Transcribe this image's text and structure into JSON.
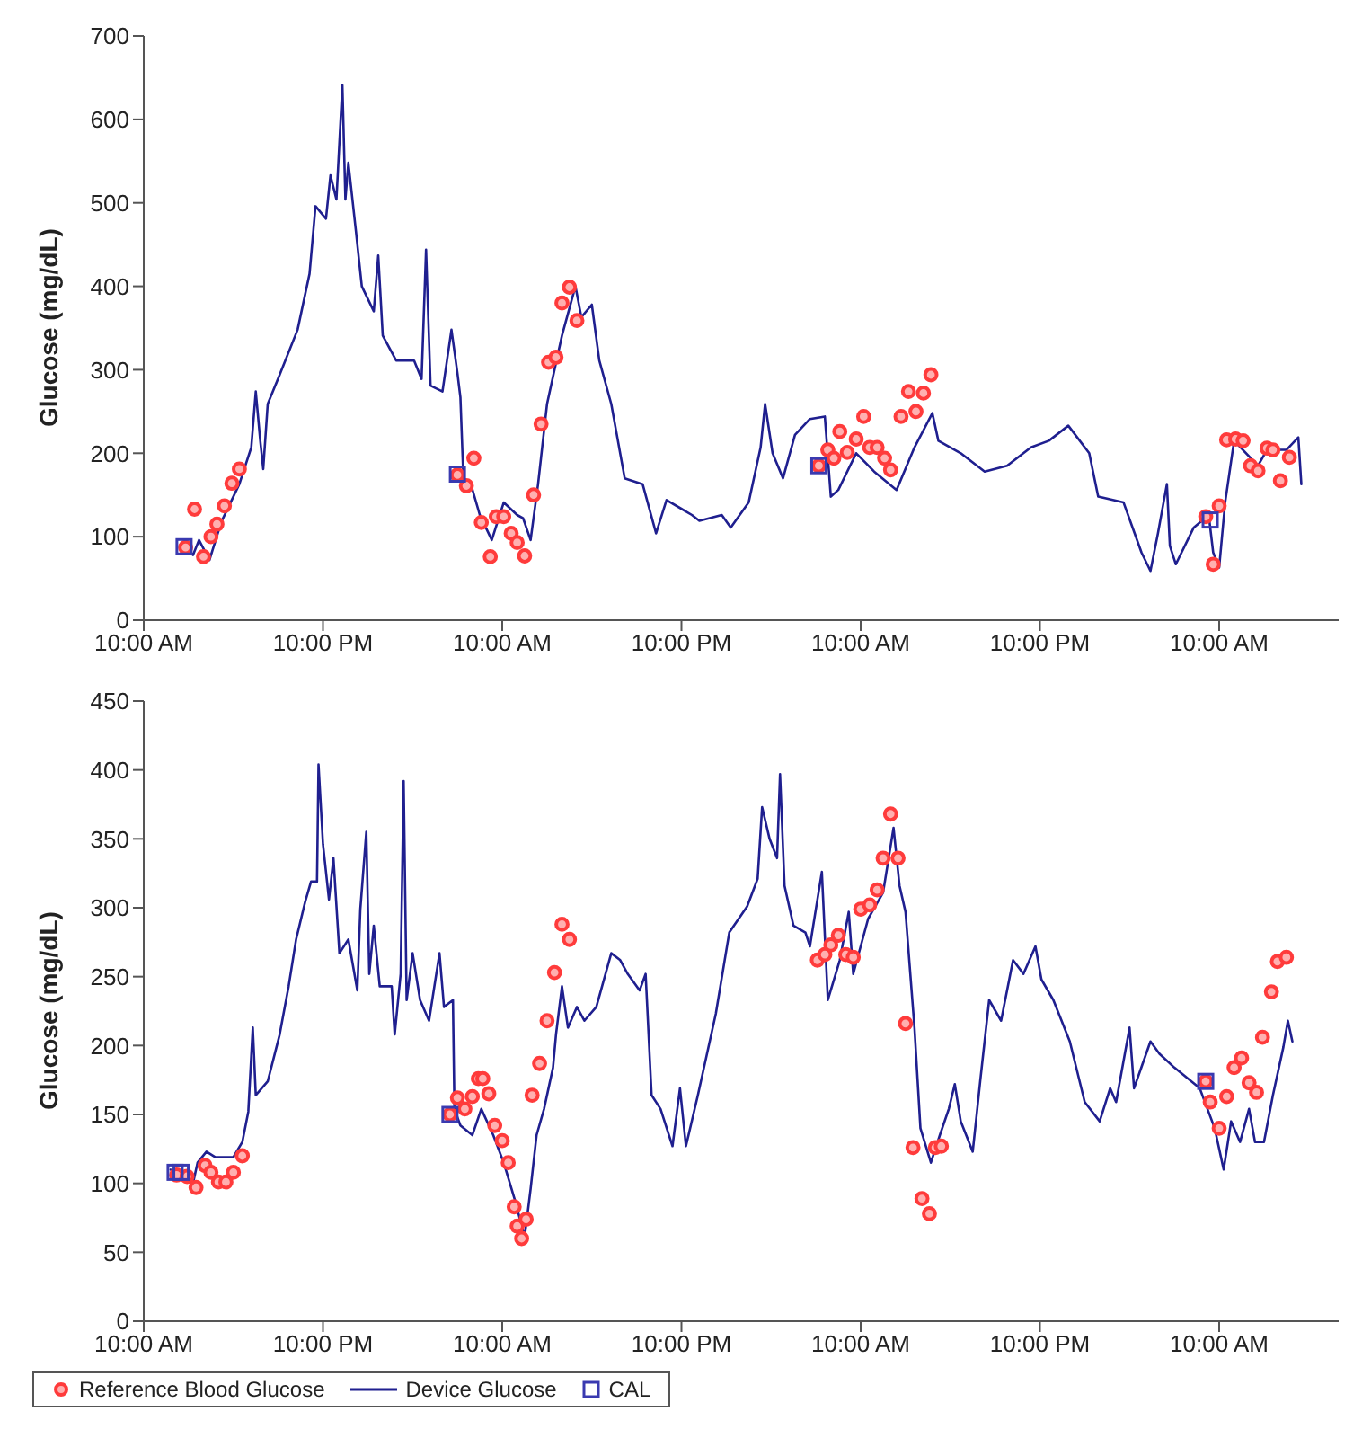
{
  "chart_data": [
    {
      "type": "line",
      "ylabel": "Glucose (mg/dL)",
      "xlim": [
        "--01-01T10:00",
        "--01-04T18:00"
      ],
      "ylim": [
        0,
        700
      ],
      "yticks": [
        0,
        100,
        200,
        300,
        400,
        500,
        600,
        700
      ],
      "xticks": [
        {
          "value": "--01-01T10:00",
          "label": "10:00 AM"
        },
        {
          "value": "--01-01T22:00",
          "label": "10:00 PM"
        },
        {
          "value": "--01-02T10:00",
          "label": "10:00 AM"
        },
        {
          "value": "--01-02T22:00",
          "label": "10:00 PM"
        },
        {
          "value": "--01-03T10:00",
          "label": "10:00 AM"
        },
        {
          "value": "--01-03T22:00",
          "label": "10:00 PM"
        },
        {
          "value": "--01-04T10:00",
          "label": "10:00 AM"
        }
      ],
      "grid": false,
      "legend": false,
      "series": [
        {
          "type": "scatter",
          "marker": "circle",
          "color": "#ff3b3b",
          "x": [
            "--01-01T12:48",
            "--01-01T13:24",
            "--01-01T14:00",
            "--01-01T14:30",
            "--01-01T14:54",
            "--01-01T15:24",
            "--01-01T15:54",
            "--01-01T16:24",
            "--01-02T07:00",
            "--01-02T08:06",
            "--01-02T07:36",
            "--01-02T08:36",
            "--01-02T09:12",
            "--01-02T09:36",
            "--01-02T10:06",
            "--01-02T10:36",
            "--01-02T11:00",
            "--01-02T11:30",
            "--01-02T12:06",
            "--01-02T12:36",
            "--01-02T13:06",
            "--01-02T13:36",
            "--01-02T14:00",
            "--01-02T14:30",
            "--01-02T15:00",
            "--01-03T07:12",
            "--01-03T07:48",
            "--01-03T08:12",
            "--01-03T08:36",
            "--01-03T09:06",
            "--01-03T09:42",
            "--01-03T10:12",
            "--01-03T10:36",
            "--01-03T11:06",
            "--01-03T11:36",
            "--01-03T12:00",
            "--01-03T12:42",
            "--01-03T13:12",
            "--01-03T13:42",
            "--01-03T14:12",
            "--01-03T14:42",
            "--01-04T09:06",
            "--01-04T09:36",
            "--01-04T10:00",
            "--01-04T10:30",
            "--01-04T11:06",
            "--01-04T11:36",
            "--01-04T12:06",
            "--01-04T12:36",
            "--01-04T13:12",
            "--01-04T13:36",
            "--01-04T14:06",
            "--01-04T14:42"
          ],
          "values": [
            87,
            133,
            76,
            100,
            115,
            137,
            164,
            181,
            174,
            194,
            161,
            117,
            76,
            124,
            124,
            104,
            93,
            77,
            150,
            235,
            309,
            315,
            380,
            399,
            359,
            185,
            204,
            194,
            226,
            201,
            217,
            244,
            207,
            207,
            194,
            180,
            244,
            274,
            250,
            272,
            294,
            124,
            67,
            137,
            216,
            217,
            215,
            185,
            179,
            206,
            204,
            167,
            195
          ]
        },
        {
          "marker": "none",
          "color": "#1f1f8f",
          "x": [
            "--01-01T12:42",
            "--01-01T13:18",
            "--01-01T13:42",
            "--01-01T14:24",
            "--01-01T15:12",
            "--01-01T16:24",
            "--01-01T17:12",
            "--01-01T17:30",
            "--01-01T17:48",
            "--01-01T18:00",
            "--01-01T18:18",
            "--01-01T19:06",
            "--01-01T20:18",
            "--01-01T21:06",
            "--01-01T21:30",
            "--01-01T22:12",
            "--01-01T22:30",
            "--01-01T22:54",
            "--01-01T23:18",
            "--01-01T23:30",
            "--01-01T23:42",
            "--01-02T00:12",
            "--01-02T00:36",
            "--01-02T01:24",
            "--01-02T01:42",
            "--01-02T02:00",
            "--01-02T02:54",
            "--01-02T04:06",
            "--01-02T04:36",
            "--01-02T04:54",
            "--01-02T05:12",
            "--01-02T06:00",
            "--01-02T06:36",
            "--01-02T07:00",
            "--01-02T07:12",
            "--01-02T07:24",
            "--01-02T07:54",
            "--01-02T08:30",
            "--01-02T09:18",
            "--01-02T10:06",
            "--01-02T11:00",
            "--01-02T11:24",
            "--01-02T11:54",
            "--01-02T12:24",
            "--01-02T13:00",
            "--01-02T14:00",
            "--01-02T14:54",
            "--01-02T15:18",
            "--01-02T16:00",
            "--01-02T16:30",
            "--01-02T17:18",
            "--01-02T18:12",
            "--01-02T19:24",
            "--01-02T20:18",
            "--01-02T21:00",
            "--01-02T22:42",
            "--01-02T23:12",
            "--01-03T00:42",
            "--01-03T01:18",
            "--01-03T02:30",
            "--01-03T03:18",
            "--01-03T03:36",
            "--01-03T04:06",
            "--01-03T04:48",
            "--01-03T05:36",
            "--01-03T06:36",
            "--01-03T07:36",
            "--01-03T08:00",
            "--01-03T08:30",
            "--01-03T09:42",
            "--01-03T10:54",
            "--01-03T12:24",
            "--01-03T13:36",
            "--01-03T14:48",
            "--01-03T15:12",
            "--01-03T16:42",
            "--01-03T18:18",
            "--01-03T19:48",
            "--01-03T21:24",
            "--01-03T22:36",
            "--01-03T23:54",
            "--01-04T01:18",
            "--01-04T01:54",
            "--01-04T03:36",
            "--01-04T04:48",
            "--01-04T05:24",
            "--01-04T05:54",
            "--01-04T06:30",
            "--01-04T06:42",
            "--01-04T07:06",
            "--01-04T08:18",
            "--01-04T09:18",
            "--01-04T09:36",
            "--01-04T10:00",
            "--01-04T10:24",
            "--01-04T11:00",
            "--01-04T12:36",
            "--01-04T13:12",
            "--01-04T14:30",
            "--01-04T15:18",
            "--01-04T15:30"
          ],
          "values": [
            89,
            78,
            96,
            72,
            118,
            163,
            207,
            274,
            215,
            181,
            259,
            294,
            348,
            415,
            496,
            481,
            533,
            504,
            641,
            504,
            548,
            467,
            400,
            370,
            437,
            341,
            311,
            311,
            289,
            444,
            281,
            274,
            348,
            296,
            267,
            170,
            163,
            126,
            96,
            141,
            126,
            122,
            96,
            163,
            259,
            341,
            400,
            363,
            378,
            311,
            259,
            170,
            163,
            104,
            144,
            126,
            119,
            126,
            111,
            141,
            207,
            259,
            200,
            170,
            222,
            241,
            244,
            148,
            156,
            200,
            178,
            156,
            207,
            248,
            215,
            200,
            178,
            185,
            207,
            215,
            233,
            200,
            148,
            141,
            81,
            59,
            104,
            163,
            89,
            67,
            111,
            126,
            81,
            63,
            141,
            215,
            185,
            204,
            204,
            219,
            163
          ]
        },
        {
          "type": "scatter",
          "marker": "square",
          "color": "#3a3ab0",
          "x": [
            "--01-01T12:42",
            "--01-02T07:00",
            "--01-03T07:12",
            "--01-04T09:24"
          ],
          "values": [
            88,
            175,
            185,
            120
          ]
        }
      ]
    },
    {
      "type": "line",
      "ylabel": "Glucose (mg/dL)",
      "xlim": [
        "--01-01T10:00",
        "--01-04T18:00"
      ],
      "ylim": [
        0,
        450
      ],
      "yticks": [
        0,
        50,
        100,
        150,
        200,
        250,
        300,
        350,
        400,
        450
      ],
      "xticks": [
        {
          "value": "--01-01T10:00",
          "label": "10:00 AM"
        },
        {
          "value": "--01-01T22:00",
          "label": "10:00 PM"
        },
        {
          "value": "--01-02T10:00",
          "label": "10:00 AM"
        },
        {
          "value": "--01-02T22:00",
          "label": "10:00 PM"
        },
        {
          "value": "--01-03T10:00",
          "label": "10:00 AM"
        },
        {
          "value": "--01-03T22:00",
          "label": "10:00 PM"
        },
        {
          "value": "--01-04T10:00",
          "label": "10:00 AM"
        }
      ],
      "grid": false,
      "legend": "bottom",
      "series": [
        {
          "name": "Reference Blood Glucose",
          "type": "scatter",
          "marker": "circle",
          "color": "#ff3b3b",
          "x": [
            "--01-01T12:12",
            "--01-01T12:54",
            "--01-01T13:30",
            "--01-01T14:06",
            "--01-01T14:30",
            "--01-01T15:00",
            "--01-01T15:30",
            "--01-01T16:00",
            "--01-01T16:36",
            "--01-02T06:30",
            "--01-02T07:00",
            "--01-02T07:30",
            "--01-02T08:00",
            "--01-02T08:24",
            "--01-02T08:42",
            "--01-02T09:06",
            "--01-02T09:30",
            "--01-02T10:00",
            "--01-02T10:24",
            "--01-02T10:48",
            "--01-02T11:00",
            "--01-02T11:18",
            "--01-02T11:36",
            "--01-02T12:00",
            "--01-02T12:30",
            "--01-02T13:00",
            "--01-02T13:30",
            "--01-02T14:00",
            "--01-02T14:30",
            "--01-03T07:06",
            "--01-03T07:36",
            "--01-03T08:00",
            "--01-03T08:30",
            "--01-03T09:00",
            "--01-03T09:30",
            "--01-03T10:00",
            "--01-03T10:36",
            "--01-03T11:06",
            "--01-03T11:30",
            "--01-03T12:00",
            "--01-03T12:30",
            "--01-03T13:00",
            "--01-03T13:30",
            "--01-03T14:06",
            "--01-03T14:36",
            "--01-03T15:00",
            "--01-03T15:24",
            "--01-04T09:06",
            "--01-04T09:24",
            "--01-04T10:00",
            "--01-04T10:30",
            "--01-04T11:00",
            "--01-04T11:30",
            "--01-04T12:00",
            "--01-04T12:30",
            "--01-04T12:54",
            "--01-04T13:30",
            "--01-04T13:54",
            "--01-04T14:30"
          ],
          "values": [
            106,
            105,
            97,
            113,
            108,
            101,
            101,
            108,
            120,
            150,
            162,
            154,
            163,
            176,
            176,
            165,
            142,
            131,
            115,
            83,
            69,
            60,
            74,
            164,
            187,
            218,
            253,
            288,
            277,
            262,
            266,
            273,
            280,
            266,
            264,
            299,
            302,
            313,
            336,
            368,
            336,
            216,
            126,
            89,
            78,
            126,
            127,
            174,
            159,
            140,
            163,
            184,
            191,
            173,
            166,
            206,
            239,
            261,
            264
          ]
        },
        {
          "name": "Device Glucose",
          "marker": "none",
          "color": "#1f1f8f",
          "x": [
            "--01-01T11:48",
            "--01-01T12:30",
            "--01-01T13:18",
            "--01-01T13:36",
            "--01-01T14:12",
            "--01-01T14:48",
            "--01-01T16:00",
            "--01-01T16:36",
            "--01-01T17:00",
            "--01-01T17:18",
            "--01-01T17:30",
            "--01-01T18:18",
            "--01-01T19:06",
            "--01-01T19:42",
            "--01-01T20:12",
            "--01-01T20:48",
            "--01-01T21:12",
            "--01-01T21:36",
            "--01-01T21:42",
            "--01-01T22:00",
            "--01-01T22:24",
            "--01-01T22:42",
            "--01-01T23:06",
            "--01-01T23:42",
            "--01-02T00:18",
            "--01-02T00:30",
            "--01-02T00:54",
            "--01-02T01:06",
            "--01-02T01:24",
            "--01-02T01:48",
            "--01-02T02:36",
            "--01-02T02:48",
            "--01-02T03:12",
            "--01-02T03:24",
            "--01-02T03:36",
            "--01-02T04:00",
            "--01-02T04:30",
            "--01-02T05:06",
            "--01-02T05:48",
            "--01-02T06:06",
            "--01-02T06:42",
            "--01-02T06:48",
            "--01-02T07:12",
            "--01-02T08:00",
            "--01-02T08:36",
            "--01-02T09:24",
            "--01-02T10:06",
            "--01-02T10:54",
            "--01-02T11:30",
            "--01-02T11:54",
            "--01-02T12:18",
            "--01-02T12:48",
            "--01-02T13:24",
            "--01-02T13:36",
            "--01-02T14:00",
            "--01-02T14:24",
            "--01-02T15:00",
            "--01-02T15:30",
            "--01-02T16:18",
            "--01-02T17:18",
            "--01-02T17:54",
            "--01-02T18:24",
            "--01-02T19:12",
            "--01-02T19:36",
            "--01-02T20:00",
            "--01-02T20:36",
            "--01-02T21:24",
            "--01-02T21:54",
            "--01-02T22:18",
            "--01-02T23:06",
            "--01-03T00:18",
            "--01-03T01:12",
            "--01-03T02:24",
            "--01-03T03:06",
            "--01-03T03:24",
            "--01-03T03:54",
            "--01-03T04:24",
            "--01-03T04:36",
            "--01-03T04:54",
            "--01-03T05:30",
            "--01-03T06:18",
            "--01-03T06:36",
            "--01-03T07:24",
            "--01-03T07:48",
            "--01-03T08:36",
            "--01-03T09:12",
            "--01-03T09:30",
            "--01-03T10:30",
            "--01-03T11:30",
            "--01-03T12:12",
            "--01-03T12:36",
            "--01-03T13:00",
            "--01-03T13:36",
            "--01-03T14:00",
            "--01-03T14:42",
            "--01-03T15:18",
            "--01-03T15:54",
            "--01-03T16:18",
            "--01-03T16:42",
            "--01-03T17:30",
            "--01-03T18:00",
            "--01-03T18:36",
            "--01-03T19:24",
            "--01-03T20:12",
            "--01-03T20:54",
            "--01-03T21:42",
            "--01-03T22:06",
            "--01-03T22:54",
            "--01-04T00:00",
            "--01-04T01:00",
            "--01-04T02:00",
            "--01-04T02:42",
            "--01-04T03:06",
            "--01-04T04:00",
            "--01-04T04:18",
            "--01-04T05:24",
            "--01-04T06:00",
            "--01-04T07:00",
            "--01-04T08:42",
            "--01-04T09:42",
            "--01-04T10:18",
            "--01-04T10:48",
            "--01-04T11:24",
            "--01-04T12:00",
            "--01-04T12:24",
            "--01-04T13:00",
            "--01-04T13:36",
            "--01-04T14:18",
            "--01-04T14:36",
            "--01-04T14:54"
          ],
          "values": [
            110,
            103,
            100,
            115,
            123,
            119,
            119,
            130,
            152,
            213,
            164,
            174,
            208,
            243,
            277,
            304,
            319,
            319,
            404,
            346,
            306,
            336,
            267,
            277,
            240,
            299,
            355,
            252,
            287,
            243,
            243,
            208,
            252,
            392,
            233,
            267,
            233,
            218,
            267,
            228,
            233,
            154,
            142,
            135,
            154,
            135,
            115,
            86,
            61,
            96,
            135,
            154,
            184,
            208,
            243,
            213,
            228,
            218,
            228,
            267,
            262,
            252,
            240,
            252,
            164,
            154,
            127,
            169,
            127,
            164,
            223,
            282,
            301,
            321,
            373,
            350,
            336,
            397,
            316,
            287,
            282,
            272,
            326,
            233,
            262,
            297,
            252,
            292,
            311,
            358,
            316,
            297,
            213,
            140,
            115,
            135,
            154,
            172,
            145,
            123,
            174,
            233,
            218,
            262,
            252,
            272,
            248,
            233,
            203,
            159,
            145,
            169,
            159,
            213,
            169,
            203,
            194,
            184,
            169,
            140,
            110,
            145,
            130,
            154,
            130,
            130,
            164,
            199,
            218,
            203
          ]
        },
        {
          "name": "CAL",
          "type": "scatter",
          "marker": "square",
          "color": "#3a3ab0",
          "x": [
            "--01-01T12:06",
            "--01-01T12:30",
            "--01-02T06:30",
            "--01-04T09:06"
          ],
          "values": [
            108,
            108,
            150,
            174
          ]
        }
      ]
    }
  ]
}
